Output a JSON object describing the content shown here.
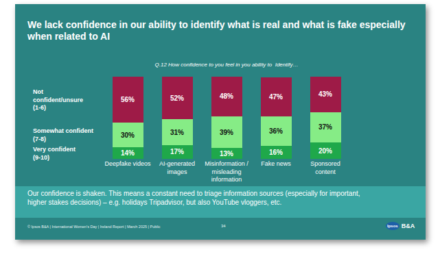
{
  "chart_data": {
    "type": "bar",
    "title": "We lack confidence in our ability to identify what is real and what is fake especially when related to AI",
    "subtitle": "Q.12 How confidence to you feel in you ability to  Identify…",
    "categories": [
      "Deepfake videos",
      "AI-generated images",
      "Misinformation / misleading information",
      "Fake news",
      "Sponsored content"
    ],
    "series": [
      {
        "name": "Very confident (9-10)",
        "color": "#1fa84a",
        "values": [
          14,
          17,
          13,
          16,
          20
        ],
        "value_labels": [
          "14%",
          "17%",
          "13%",
          "16%",
          "20%"
        ]
      },
      {
        "name": "Somewhat confident (7-8)",
        "color": "#86ec86",
        "values": [
          30,
          31,
          39,
          36,
          37
        ],
        "value_labels": [
          "30%",
          "31%",
          "39%",
          "36%",
          "37%"
        ]
      },
      {
        "name": "Not confident/unsure (1-6)",
        "color": "#9e1b47",
        "values": [
          56,
          52,
          48,
          47,
          43
        ],
        "value_labels": [
          "56%",
          "52%",
          "48%",
          "47%",
          "43%"
        ]
      }
    ],
    "ylim": [
      0,
      100
    ],
    "stacked": true,
    "data_labels": true,
    "tick_labels": "x",
    "grid": false
  },
  "caption": "Our confidence is shaken. This means a constant need to triage information sources (especially for important, higher stakes decisions) – e.g. holidays Tripadvisor, but also YouTube vloggers, etc.",
  "footer": "© Ipsos B&A | International Women's Day | Ireland Report | March 2025 | Public",
  "page": "34",
  "logo": [
    "Ipsos",
    "B&A"
  ]
}
